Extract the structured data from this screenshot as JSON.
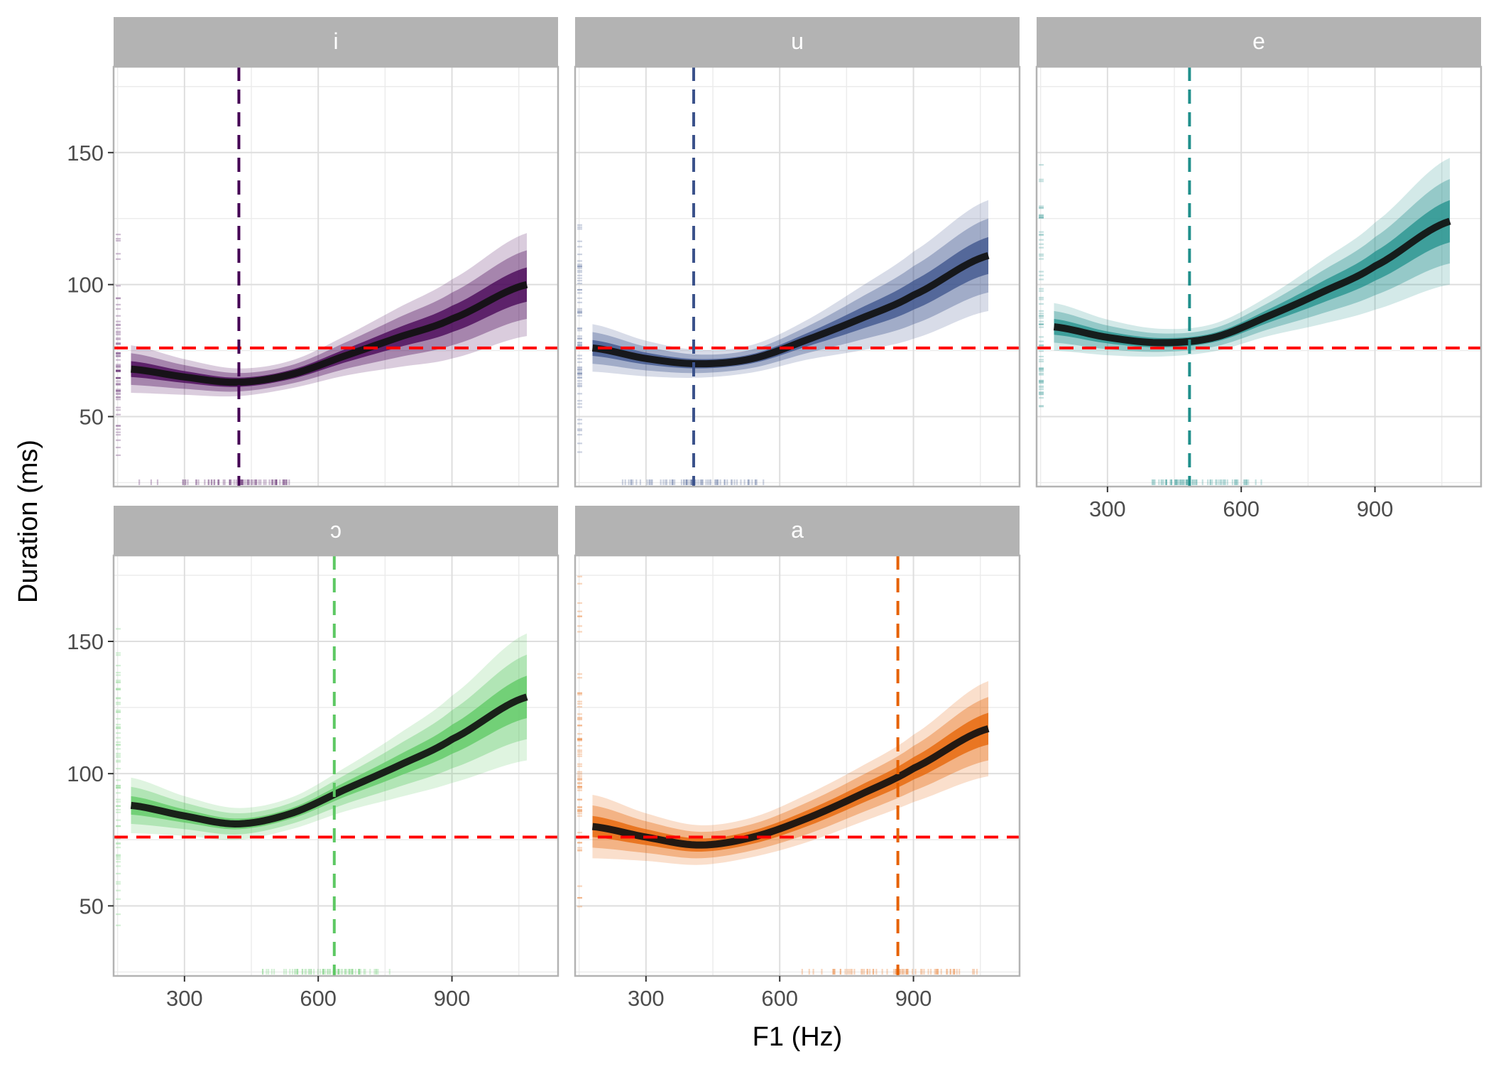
{
  "chart_data": {
    "type": "line",
    "xlabel": "F1 (Hz)",
    "ylabel": "Duration (ms)",
    "xlim": [
      141,
      1138
    ],
    "ylim": [
      23.5,
      182.5
    ],
    "x_ticks": [
      300,
      600,
      900
    ],
    "y_ticks": [
      50,
      100,
      150
    ],
    "grid": true,
    "reference_line": {
      "axis": "y",
      "value": 76,
      "color": "#ff0000",
      "style": "dashed"
    },
    "x": [
      180,
      300,
      420,
      540,
      660,
      780,
      900,
      1068
    ],
    "facets": [
      {
        "label": "i",
        "color": "#440154",
        "vline": 422,
        "values": [
          68,
          65,
          63,
          66,
          73,
          80,
          87,
          100
        ],
        "spread": [
          6,
          4.5,
          3.5,
          3.5,
          5,
          7.5,
          10,
          13
        ],
        "rug_x": [
          180,
          560,
          420
        ],
        "rug_y": [
          35,
          120,
          70
        ]
      },
      {
        "label": "u",
        "color": "#3b528b",
        "vline": 407,
        "values": [
          76,
          72,
          70,
          72,
          79,
          87,
          96,
          111
        ],
        "spread": [
          6,
          4.5,
          3.5,
          3.5,
          5,
          8,
          11,
          14
        ],
        "rug_x": [
          230,
          600,
          407
        ],
        "rug_y": [
          30,
          138,
          75
        ]
      },
      {
        "label": "e",
        "color": "#21908c",
        "vline": 484,
        "values": [
          84,
          80,
          78,
          80,
          88,
          97,
          107,
          124
        ],
        "spread": [
          6,
          4.5,
          3.5,
          3.5,
          5,
          8,
          11,
          16
        ],
        "rug_x": [
          380,
          720,
          484
        ],
        "rug_y": [
          45,
          150,
          85
        ]
      },
      {
        "label": "ɔ",
        "color": "#5dc863",
        "vline": 636,
        "values": [
          88,
          84,
          81,
          85,
          94,
          103,
          113,
          129
        ],
        "spread": [
          7,
          5,
          4,
          4,
          5.5,
          8,
          11,
          16
        ],
        "rug_x": [
          440,
          780,
          636
        ],
        "rug_y": [
          40,
          160,
          95
        ]
      },
      {
        "label": "a",
        "color": "#e66101",
        "vline": 865,
        "values": [
          80,
          76,
          73,
          76,
          83,
          92,
          102,
          117
        ],
        "spread": [
          8,
          6,
          5,
          5,
          6,
          7,
          8.5,
          12
        ],
        "rug_x": [
          550,
          1080,
          865
        ],
        "rug_y": [
          45,
          175,
          100
        ]
      }
    ]
  }
}
